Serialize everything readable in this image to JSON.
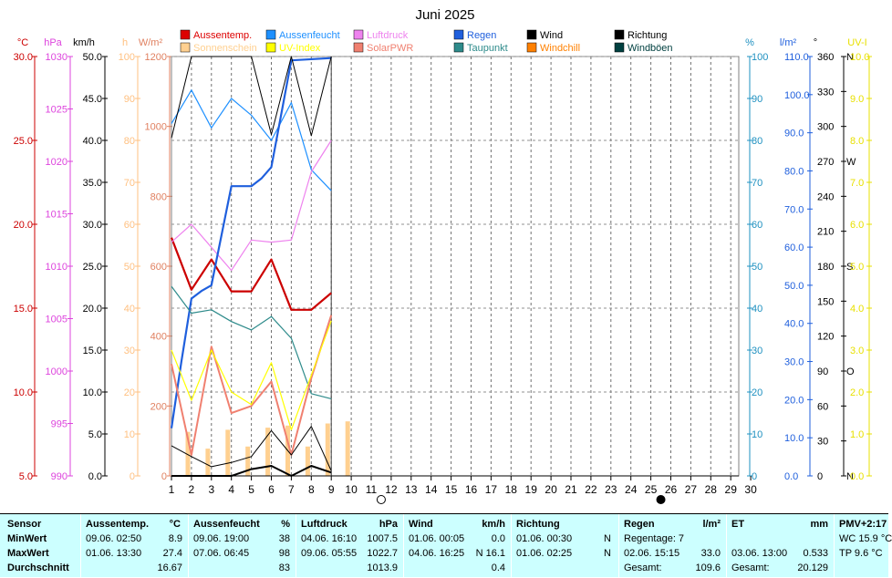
{
  "chart_data": {
    "type": "line",
    "title": "Juni 2025",
    "x": [
      1,
      2,
      3,
      4,
      5,
      6,
      7,
      8,
      9,
      10,
      11,
      12,
      13,
      14,
      15,
      16,
      17,
      18,
      19,
      20,
      21,
      22,
      23,
      24,
      25,
      26,
      27,
      28,
      29,
      30
    ],
    "x_ticks": [
      "1",
      "2",
      "3",
      "4",
      "5",
      "6",
      "7",
      "8",
      "9",
      "10",
      "11",
      "12",
      "13",
      "14",
      "15",
      "16",
      "17",
      "18",
      "19",
      "20",
      "21",
      "22",
      "23",
      "24",
      "25",
      "26",
      "27",
      "28",
      "29",
      "30"
    ],
    "grid": true,
    "axes": [
      {
        "key": "temp",
        "unit": "°C",
        "color": "#cc0000",
        "min": 5,
        "max": 30,
        "ticks": [
          "5.0",
          "10.0",
          "15.0",
          "20.0",
          "25.0",
          "30.0"
        ]
      },
      {
        "key": "hpa",
        "unit": "hPa",
        "color": "#dd44dd",
        "min": 990,
        "max": 1030,
        "ticks": [
          "990",
          "995",
          "1000",
          "1005",
          "1010",
          "1015",
          "1020",
          "1025",
          "1030"
        ]
      },
      {
        "key": "kmh",
        "unit": "km/h",
        "color": "#000000",
        "min": 0,
        "max": 50,
        "ticks": [
          "0.0",
          "5.0",
          "10.0",
          "15.0",
          "20.0",
          "25.0",
          "30.0",
          "35.0",
          "40.0",
          "45.0",
          "50.0"
        ]
      },
      {
        "key": "hours",
        "unit": "h",
        "color": "#ffc080",
        "min": 0,
        "max": 100,
        "ticks": [
          "0",
          "10",
          "20",
          "30",
          "40",
          "50",
          "60",
          "70",
          "80",
          "90",
          "100"
        ]
      },
      {
        "key": "wm2",
        "unit": "W/m²",
        "color": "#e08060",
        "min": 0,
        "max": 1200,
        "ticks": [
          "0",
          "200",
          "400",
          "600",
          "800",
          "1000",
          "1200"
        ]
      },
      {
        "key": "pct",
        "unit": "%",
        "color": "#1e90c0",
        "min": 0,
        "max": 100,
        "ticks": [
          "0",
          "10",
          "20",
          "30",
          "40",
          "50",
          "60",
          "70",
          "80",
          "90",
          "100"
        ]
      },
      {
        "key": "rain",
        "unit": "l/m²",
        "color": "#1f5fdd",
        "min": 0,
        "max": 110,
        "ticks": [
          "0.0",
          "10.0",
          "20.0",
          "30.0",
          "40.0",
          "50.0",
          "60.0",
          "70.0",
          "80.0",
          "90.0",
          "100.0",
          "110.0"
        ]
      },
      {
        "key": "deg",
        "unit": "°",
        "color": "#000000",
        "min": 0,
        "max": 360,
        "ticks": [
          "0",
          "30",
          "60",
          "90",
          "120",
          "150",
          "180",
          "210",
          "240",
          "270",
          "300",
          "330",
          "360"
        ],
        "compass": {
          "0": "N",
          "90": "O",
          "180": "S",
          "270": "W",
          "360": "N"
        }
      },
      {
        "key": "uv",
        "unit": "UV-I",
        "color": "#e8e000",
        "min": 0,
        "max": 10,
        "ticks": [
          "0.0",
          "1.0",
          "2.0",
          "3.0",
          "4.0",
          "5.0",
          "6.0",
          "7.0",
          "8.0",
          "9.0",
          "10.0"
        ]
      }
    ],
    "legend": [
      {
        "name": "Aussentemp.",
        "color": "#dd0000"
      },
      {
        "name": "Aussenfeucht",
        "color": "#1e90ff"
      },
      {
        "name": "Luftdruck",
        "color": "#ee82ee"
      },
      {
        "name": "Regen",
        "color": "#1f5fdd"
      },
      {
        "name": "Wind",
        "color": "#000000"
      },
      {
        "name": "Richtung",
        "color": "#000000"
      },
      {
        "name": "Sonnenschein",
        "color": "#ffd090"
      },
      {
        "name": "UV-Index",
        "color": "#ffff00"
      },
      {
        "name": "SolarPWR",
        "color": "#f08070"
      },
      {
        "name": "Taupunkt",
        "color": "#2e8b8b"
      },
      {
        "name": "Windchill",
        "color": "#ff8000"
      },
      {
        "name": "Windböen",
        "color": "#004040"
      }
    ],
    "series": [
      {
        "name": "Aussentemp.",
        "axis": "temp",
        "color": "#cc0000",
        "width": 2.2,
        "x": [
          1,
          2,
          3,
          4,
          5,
          6,
          7,
          8,
          9
        ],
        "values": [
          19.2,
          16.1,
          17.9,
          16.0,
          16.0,
          17.9,
          14.9,
          14.9,
          15.9
        ]
      },
      {
        "name": "Aussenfeucht",
        "axis": "pct",
        "color": "#1e90ff",
        "width": 1.2,
        "x": [
          1,
          2,
          3,
          4,
          5,
          6,
          7,
          8,
          9
        ],
        "values": [
          84,
          92,
          83,
          90,
          86,
          80,
          89,
          73,
          68
        ]
      },
      {
        "name": "Luftdruck",
        "axis": "hpa",
        "color": "#ee82ee",
        "width": 1.2,
        "x": [
          1,
          2,
          3,
          4,
          5,
          6,
          7,
          8,
          9
        ],
        "values": [
          1012.3,
          1014.0,
          1011.8,
          1009.6,
          1012.5,
          1012.3,
          1012.5,
          1019.0,
          1022.0
        ]
      },
      {
        "name": "Regen",
        "axis": "rain",
        "color": "#1f5fdd",
        "width": 2.2,
        "x": [
          1,
          1.5,
          2,
          2.5,
          3,
          4,
          5,
          5.5,
          6,
          7,
          9
        ],
        "values": [
          12.5,
          30.0,
          46.5,
          48.5,
          50.0,
          76.0,
          76.0,
          78.0,
          81.0,
          109.0,
          109.6
        ]
      },
      {
        "name": "Taupunkt",
        "axis": "temp",
        "color": "#2e8b8b",
        "width": 1.2,
        "x": [
          1,
          2,
          3,
          4,
          5,
          6,
          7,
          8,
          9
        ],
        "values": [
          16.3,
          14.7,
          14.9,
          14.2,
          13.7,
          14.5,
          13.2,
          9.9,
          9.6
        ]
      },
      {
        "name": "SolarPWR",
        "axis": "wm2",
        "color": "#f08070",
        "width": 2.0,
        "x": [
          1,
          2,
          3,
          4,
          5,
          6,
          7,
          8,
          9
        ],
        "values": [
          320,
          60,
          370,
          180,
          200,
          270,
          60,
          280,
          460
        ]
      },
      {
        "name": "UV-Index",
        "axis": "uv",
        "color": "#ffff00",
        "width": 1.2,
        "x": [
          1,
          2,
          3,
          4,
          5,
          6,
          7,
          8,
          9
        ],
        "values": [
          3.0,
          1.8,
          3.0,
          2.0,
          1.7,
          2.7,
          1.1,
          2.4,
          3.7
        ]
      },
      {
        "name": "Wind",
        "axis": "kmh",
        "color": "#000000",
        "width": 2.0,
        "x": [
          1,
          2,
          3,
          4,
          5,
          6,
          7,
          8,
          9
        ],
        "values": [
          0.0,
          0.0,
          0.0,
          0.0,
          0.8,
          1.2,
          0.0,
          1.2,
          0.4
        ]
      },
      {
        "name": "Windböen",
        "axis": "kmh",
        "color": "#000000",
        "width": 1.0,
        "x": [
          1,
          2,
          3,
          4,
          5,
          6,
          7,
          8,
          9
        ],
        "values": [
          3.6,
          2.3,
          1.1,
          1.6,
          2.3,
          5.4,
          2.5,
          5.9,
          0.6
        ]
      },
      {
        "name": "Richtung",
        "axis": "deg",
        "color": "#000000",
        "width": 1.0,
        "x": [
          1,
          2,
          3,
          4,
          5,
          6,
          7,
          8,
          9
        ],
        "values": [
          290,
          360,
          360,
          360,
          360,
          293,
          360,
          292,
          360
        ]
      }
    ],
    "bars": {
      "name": "Sonnenschein",
      "axis": "hours",
      "color": "#ffd090",
      "x": [
        1,
        2,
        3,
        4,
        5,
        6,
        7,
        8,
        9
      ],
      "values": [
        10.5,
        6.5,
        11.0,
        7.0,
        11.5,
        12.0,
        7.0,
        12.5,
        13.0
      ]
    },
    "moon_phases": [
      {
        "day": 11.5,
        "phase": "full"
      },
      {
        "day": 25.5,
        "phase": "new"
      }
    ]
  },
  "stats": {
    "headers": {
      "sensor": "Sensor",
      "temp": "Aussentemp.",
      "temp_unit": "°C",
      "hum": "Aussenfeucht",
      "hum_unit": "%",
      "press": "Luftdruck",
      "press_unit": "hPa",
      "wind": "Wind",
      "wind_unit": "km/h",
      "dir": "Richtung",
      "rain": "Regen",
      "rain_unit": "l/m²",
      "et": "ET",
      "et_unit": "mm",
      "pmv": "PMV+2:17"
    },
    "rows": {
      "min": "MinWert",
      "max": "MaxWert",
      "avg": "Durchschnitt"
    },
    "temp": {
      "min_time": "09.06.  02:50",
      "min_val": "8.9",
      "max_time": "01.06.  13:30",
      "max_val": "27.4",
      "avg_val": "16.67"
    },
    "hum": {
      "min_time": "09.06.  19:00",
      "min_val": "38",
      "max_time": "07.06.  06:45",
      "max_val": "98",
      "avg_val": "83"
    },
    "press": {
      "min_time": "04.06.  16:10",
      "min_val": "1007.5",
      "max_time": "09.06.  05:55",
      "max_val": "1022.7",
      "avg_val": "1013.9"
    },
    "wind": {
      "min_time": "01.06.  00:05",
      "min_val": "0.0",
      "max_time": "04.06.  16:25",
      "max_val": "N 16.1",
      "avg_val": "0.4"
    },
    "dir": {
      "min_time": "01.06.  00:30",
      "min_val": "N",
      "max_time": "01.06.  02:25",
      "max_val": "N"
    },
    "rain": {
      "days_label": "Regentage: 7",
      "max_time": "02.06.  15:15",
      "max_val": "33.0",
      "total_label": "Gesamt:",
      "total_val": "109.6"
    },
    "et": {
      "max_time": "03.06.  13:00",
      "max_val": "0.533",
      "total_label": "Gesamt:",
      "total_val": "20.129"
    },
    "pmv": {
      "wc": "WC 15.9 °C",
      "tp": "TP 9.6 °C"
    }
  }
}
